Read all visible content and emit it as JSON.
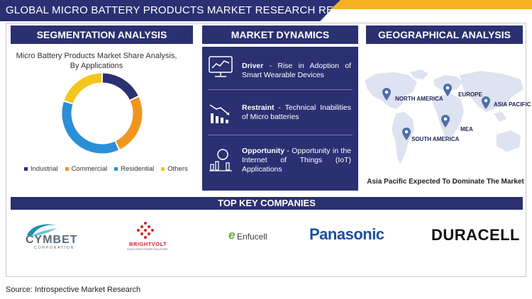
{
  "title": "GLOBAL MICRO BATTERY PRODUCTS MARKET RESEARCH REPORT",
  "sections": {
    "segmentation": "SEGMENTATION ANALYSIS",
    "dynamics": "MARKET DYNAMICS",
    "geography": "GEOGRAPHICAL ANALYSIS",
    "companies": "TOP KEY COMPANIES"
  },
  "chart_data": {
    "type": "pie",
    "title": "Micro Battery Products Market Share Analysis, By Applications",
    "categories": [
      "Industrial",
      "Commercial",
      "Residential",
      "Others"
    ],
    "values": [
      18,
      25,
      37,
      20
    ],
    "colors": [
      "#2b3072",
      "#f0961e",
      "#2a8fd6",
      "#f4c51d"
    ],
    "donut": true,
    "legend_position": "bottom"
  },
  "dynamics": [
    {
      "label": "Driver",
      "sep": " - ",
      "text": "Rise in Adoption of Smart Wearable Devices",
      "icon": "analytics-screen-icon"
    },
    {
      "label": "Restraint",
      "sep": " - ",
      "text": "Technical Inabilities of Micro batteries",
      "icon": "declining-chart-icon"
    },
    {
      "label": "Opportunity",
      "sep": " - ",
      "text": "Opportunity in the Internet of Things (IoT) Applications",
      "icon": "growth-idea-icon"
    }
  ],
  "geo": {
    "regions": [
      "NORTH AMERICA",
      "EUROPE",
      "ASIA PACIFIC",
      "MEA",
      "SOUTH AMERICA"
    ],
    "caption": "Asia Pacific Expected To Dominate The Market",
    "pin_color": "#4e6fa7",
    "map_color": "#dde3f0"
  },
  "companies": [
    {
      "name": "CYMBET",
      "sub": "CORPORATION"
    },
    {
      "name": "BRIGHTVOLT",
      "sub": "SOLID STATE POWER SOLUTIONS"
    },
    {
      "name": "Enfucell",
      "mark": "e"
    },
    {
      "name": "Panasonic"
    },
    {
      "name": "DURACELL"
    }
  ],
  "source": "Source: Introspective Market Research"
}
